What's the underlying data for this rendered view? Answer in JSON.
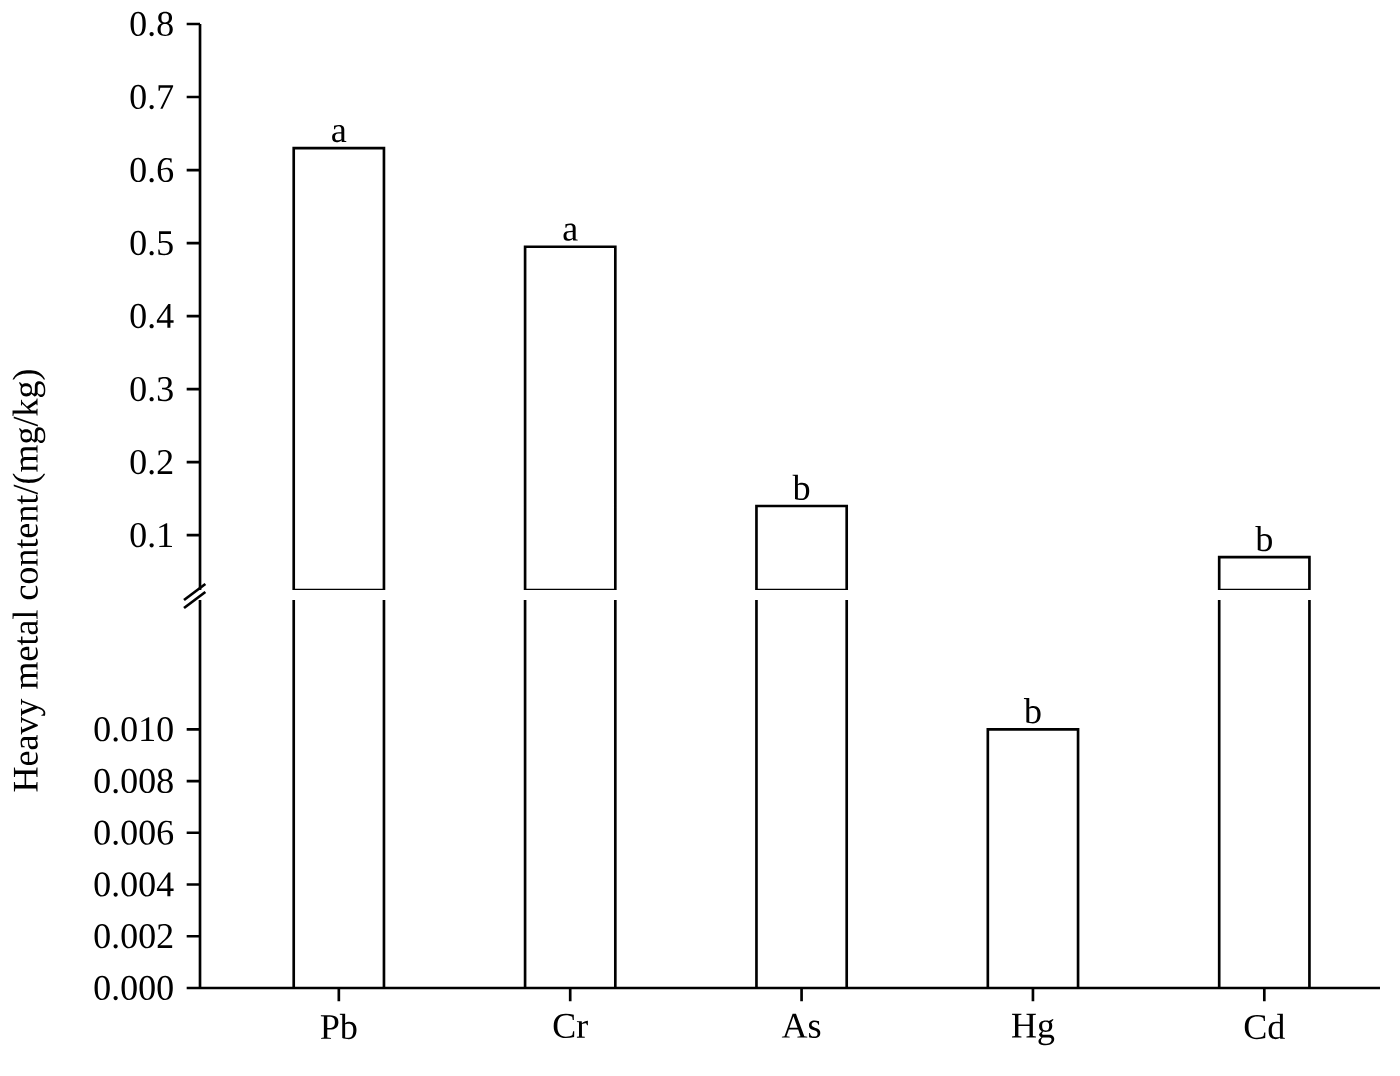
{
  "chart_data": [
    {
      "type": "bar",
      "categories": [
        "Pb",
        "Cr",
        "As",
        "Hg",
        "Cd"
      ],
      "values": [
        0.63,
        0.495,
        0.14,
        null,
        0.07
      ],
      "color": "#ffffff",
      "ylim": [
        0.025,
        0.8
      ],
      "yticks": [
        0.1,
        0.2,
        0.3,
        0.4,
        0.5,
        0.6,
        0.7,
        0.8
      ],
      "tick_labels": "y",
      "annotations": [
        {
          "text": "a",
          "x": "Pb",
          "y": 0.63
        },
        {
          "text": "a",
          "x": "Cr",
          "y": 0.495
        },
        {
          "text": "b",
          "x": "As",
          "y": 0.14
        },
        {
          "text": "b",
          "x": "Cd",
          "y": 0.07
        }
      ]
    },
    {
      "type": "bar",
      "categories": [
        "Pb",
        "Cr",
        "As",
        "Hg",
        "Cd"
      ],
      "values": [
        null,
        null,
        null,
        0.01,
        null
      ],
      "color": "#ffffff",
      "ylim": [
        0,
        0.015
      ],
      "ylabel": "Heavy metal content/(mg/kg)",
      "yticks": [
        {
          "value": 0,
          "label": "0.000"
        },
        {
          "value": 0.002,
          "label": "0.002"
        },
        {
          "value": 0.004,
          "label": "0.004"
        },
        {
          "value": 0.006,
          "label": "0.006"
        },
        {
          "value": 0.008,
          "label": "0.008"
        },
        {
          "value": 0.01,
          "label": "0.010"
        }
      ],
      "annotations": [
        {
          "text": "b",
          "x": "Hg",
          "y": 0.01
        }
      ]
    }
  ]
}
